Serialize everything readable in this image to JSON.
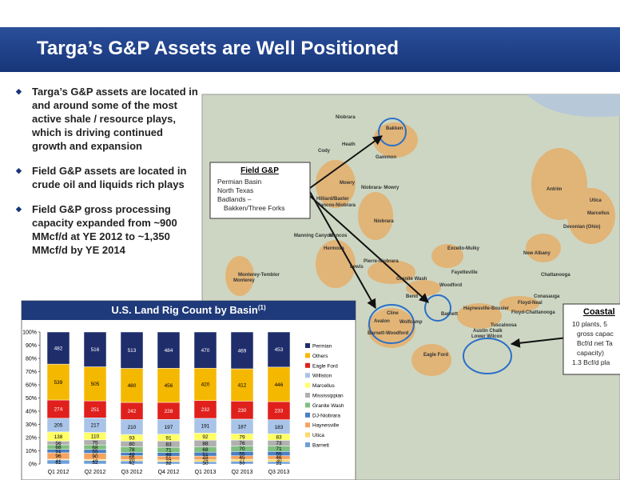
{
  "header": {
    "title": "Targa’s G&P Assets are Well Positioned"
  },
  "bullets": [
    "Targa’s G&P assets are located in and around some of the most active shale / resource plays, which is driving continued growth and expansion",
    "Field G&P assets are located in crude oil and liquids rich plays",
    "Field G&P gross processing capacity expanded from ~900 MMcf/d at YE 2012 to ~1,350 MMcf/d by YE 2014"
  ],
  "map": {
    "labels": [
      "Niobrara",
      "Bakken",
      "Heath",
      "Cody",
      "Gammon",
      "Mowry",
      "Niobrara- Mowry",
      "Hilliard/Baxter",
      "Mancos-Niobrara",
      "Niobrara",
      "Antrim",
      "Utica",
      "Marcellus",
      "Devonian (Ohio)",
      "New Albany",
      "Excello-Mulky",
      "Manning Canyon",
      "Mancos",
      "Hermosa",
      "Lewis",
      "Pierre-Niobrara",
      "Monterey-Temblor",
      "Monterey",
      "Granite Wash",
      "Woodford",
      "Fayetteville",
      "Chattanooga",
      "Conasauga",
      "Floyd-Neal",
      "Floyd-Chattanooga",
      "Haynesville-Bossier",
      "Tuscaloosa",
      "Austin Chalk",
      "Lower Wilcox",
      "Barnett",
      "Bend",
      "Avalon",
      "Cline",
      "Wolfcamp",
      "Barnett-Woodford",
      "Eagle Ford"
    ]
  },
  "field_box": {
    "title": "Field G&P",
    "items": [
      "Permian Basin",
      "North Texas",
      "Badlands –",
      "Bakken/Three Forks"
    ]
  },
  "coastal_box": {
    "title": "Coastal",
    "items": [
      "10 plants, 5",
      "gross capac",
      "Bcf/d net Ta",
      "capacity)",
      "1.3 Bcf/d pla"
    ]
  },
  "chart_data": {
    "type": "bar",
    "stacking": "percent",
    "title": "U.S. Land Rig Count by Basin",
    "title_note": "(1)",
    "categories": [
      "Q1 2012",
      "Q2 2012",
      "Q3 2012",
      "Q4 2012",
      "Q1 2013",
      "Q2 2013",
      "Q3 2013"
    ],
    "ylim": [
      0,
      100
    ],
    "yticks": [
      {
        "value": 0,
        "label": "0%"
      },
      {
        "value": 10,
        "label": "10%"
      },
      {
        "value": 20,
        "label": "20%"
      },
      {
        "value": 30,
        "label": "30%"
      },
      {
        "value": 40,
        "label": "40%"
      },
      {
        "value": 50,
        "label": "50%"
      },
      {
        "value": 60,
        "label": "60%"
      },
      {
        "value": 70,
        "label": "70%"
      },
      {
        "value": 80,
        "label": "80%"
      },
      {
        "value": 90,
        "label": "90%"
      },
      {
        "value": 100,
        "label": "100%"
      }
    ],
    "series": [
      {
        "name": "Barnett",
        "color": "#6f9fd8",
        "values": [
          61,
          52,
          42,
          32,
          30,
          33,
          31
        ]
      },
      {
        "name": "Utica",
        "color": "#ffd966",
        "values": [
          12,
          18,
          20,
          22,
          25,
          27,
          30
        ]
      },
      {
        "name": "Haynesville",
        "color": "#f4a460",
        "values": [
          96,
          90,
          55,
          51,
          48,
          45,
          46
        ]
      },
      {
        "name": "DJ-Niobrara",
        "color": "#4a7fc1",
        "values": [
          51,
          55,
          48,
          48,
          51,
          55,
          55
        ]
      },
      {
        "name": "Granite Wash",
        "color": "#7fbf7f",
        "values": [
          68,
          68,
          78,
          71,
          68,
          70,
          71
        ]
      },
      {
        "name": "Mississippian",
        "color": "#b0b0b0",
        "values": [
          56,
          75,
          80,
          83,
          88,
          76,
          73
        ]
      },
      {
        "name": "Marcellus",
        "color": "#ffff66",
        "values": [
          138,
          110,
          93,
          91,
          92,
          79,
          83
        ]
      },
      {
        "name": "Williston",
        "color": "#a9c4e8",
        "values": [
          205,
          217,
          210,
          197,
          191,
          187,
          183
        ]
      },
      {
        "name": "Eagle Ford",
        "color": "#e0201c",
        "values": [
          274,
          251,
          242,
          228,
          232,
          230,
          233
        ]
      },
      {
        "name": "Others",
        "color": "#f5b800",
        "values": [
          539,
          505,
          480,
          456,
          420,
          412,
          446
        ]
      },
      {
        "name": "Permian",
        "color": "#1f2d6b",
        "values": [
          482,
          516,
          513,
          484,
          470,
          469,
          453
        ]
      }
    ]
  }
}
